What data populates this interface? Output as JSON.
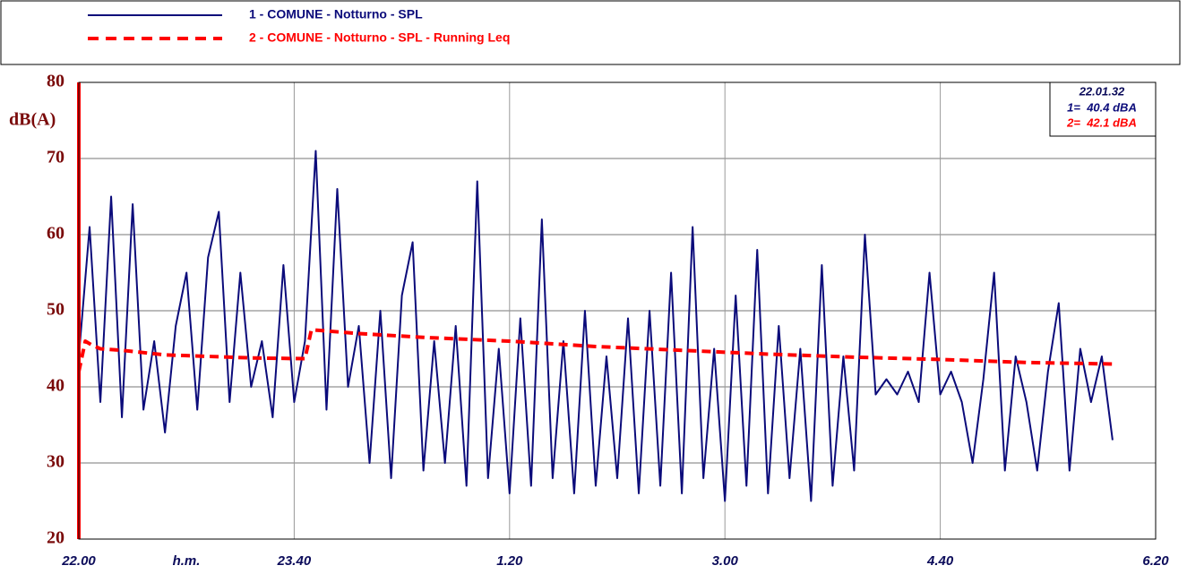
{
  "chart_data": {
    "type": "line",
    "ylabel": "dB(A)",
    "xlabel": "h.m.",
    "xlim": [
      0,
      500
    ],
    "xticks": [
      {
        "value": 0,
        "label": "22.00"
      },
      {
        "value": 100,
        "label": "23.40"
      },
      {
        "value": 200,
        "label": "1.20"
      },
      {
        "value": 300,
        "label": "3.00"
      },
      {
        "value": 400,
        "label": "4.40"
      },
      {
        "value": 500,
        "label": "6.20"
      }
    ],
    "ylim": [
      20,
      80
    ],
    "yticks": [
      20,
      30,
      40,
      50,
      60,
      70,
      80
    ],
    "grid": true,
    "series": [
      {
        "name": "1 - COMUNE - Notturno - SPL",
        "color": "#0b0b7a",
        "line_style": "solid",
        "x": [
          0,
          5,
          10,
          15,
          20,
          25,
          30,
          35,
          40,
          45,
          50,
          55,
          60,
          65,
          70,
          75,
          80,
          85,
          90,
          95,
          100,
          105,
          110,
          115,
          120,
          125,
          130,
          135,
          140,
          145,
          150,
          155,
          160,
          165,
          170,
          175,
          180,
          185,
          190,
          195,
          200,
          205,
          210,
          215,
          220,
          225,
          230,
          235,
          240,
          245,
          250,
          255,
          260,
          265,
          270,
          275,
          280,
          285,
          290,
          295,
          300,
          305,
          310,
          315,
          320,
          325,
          330,
          335,
          340,
          345,
          350,
          355,
          360,
          365,
          370,
          375,
          380,
          385,
          390,
          395,
          400,
          405,
          410,
          415,
          420,
          425,
          430,
          435,
          440,
          445,
          450,
          455,
          460,
          465,
          470,
          475,
          480
        ],
        "values": [
          44,
          61,
          38,
          65,
          36,
          64,
          37,
          46,
          34,
          48,
          55,
          37,
          57,
          63,
          38,
          55,
          40,
          46,
          36,
          56,
          38,
          46,
          71,
          37,
          66,
          40,
          48,
          30,
          50,
          28,
          52,
          59,
          29,
          46,
          30,
          48,
          27,
          67,
          28,
          45,
          26,
          49,
          27,
          62,
          28,
          46,
          26,
          50,
          27,
          44,
          28,
          49,
          26,
          50,
          27,
          55,
          26,
          61,
          28,
          45,
          25,
          52,
          27,
          58,
          26,
          48,
          28,
          45,
          25,
          56,
          27,
          44,
          29,
          60,
          39,
          41,
          39,
          42,
          38,
          55,
          39,
          42,
          38,
          30,
          41,
          55,
          29,
          44,
          38,
          29,
          42,
          51,
          29,
          45,
          38,
          44,
          33
        ]
      },
      {
        "name": "2 - COMUNE - Notturno - SPL - Running Leq",
        "color": "#ff0000",
        "line_style": "dashed",
        "x": [
          0,
          3,
          6,
          10,
          20,
          40,
          60,
          80,
          105,
          108,
          130,
          160,
          200,
          240,
          280,
          320,
          360,
          400,
          440,
          480
        ],
        "values": [
          42,
          46,
          45.5,
          45,
          44.8,
          44.2,
          44,
          43.8,
          43.7,
          47.5,
          47,
          46.5,
          46,
          45.3,
          44.8,
          44.3,
          43.9,
          43.6,
          43.2,
          43
        ]
      }
    ],
    "annotation": {
      "time": "22.01.32",
      "lines": [
        "1=  40.4 dBA",
        "2=  42.1 dBA"
      ]
    }
  }
}
